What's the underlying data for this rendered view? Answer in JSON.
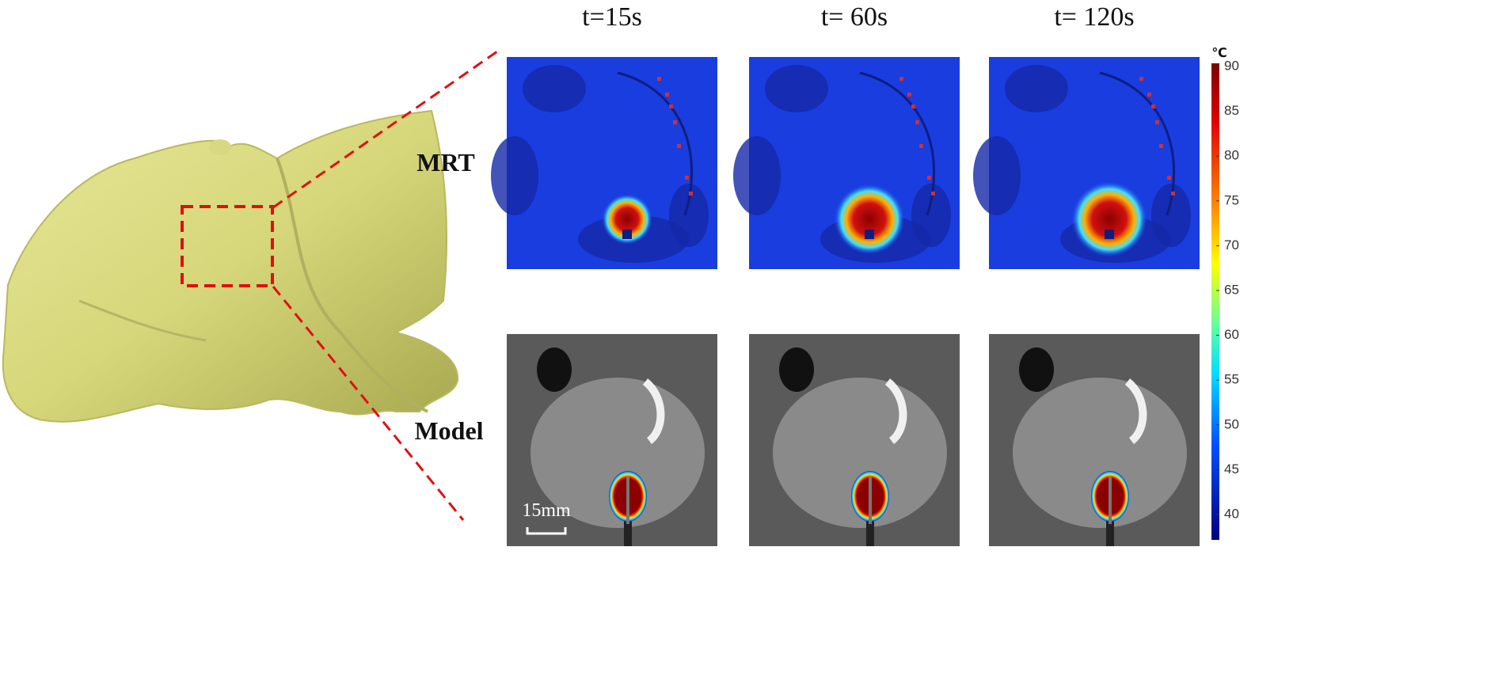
{
  "column_titles": [
    "t=15s",
    "t= 60s",
    "t= 120s"
  ],
  "row_labels": [
    "MRT",
    "Model"
  ],
  "scale_bar": "15mm",
  "colorbar": {
    "unit": "℃",
    "ticks": [
      90,
      85,
      80,
      75,
      70,
      65,
      60,
      55,
      50,
      45,
      40
    ]
  }
}
